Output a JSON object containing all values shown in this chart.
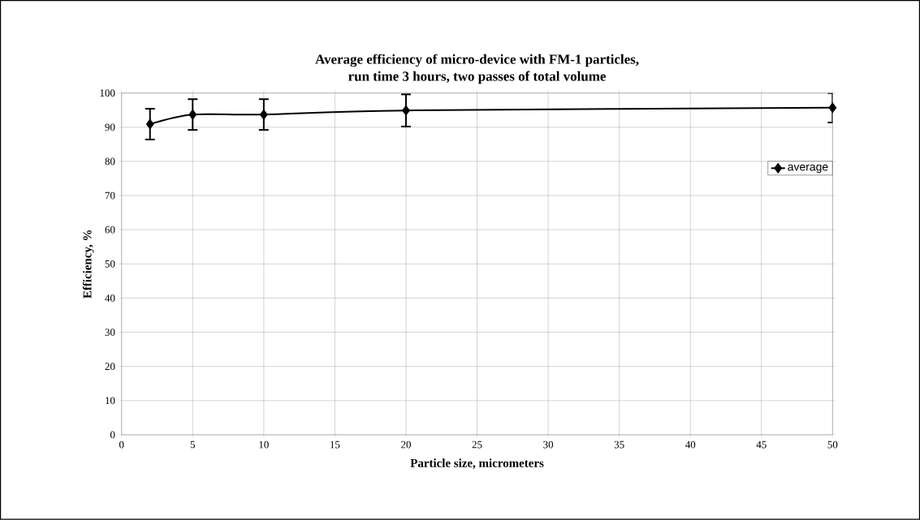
{
  "chart_data": {
    "type": "line",
    "title": "Average efficiency of micro-device with FM-1 particles,\nrun time 3 hours, two passes of total volume",
    "xlabel": "Particle size, micrometers",
    "ylabel": "Efficiency, %",
    "x": [
      2,
      5,
      10,
      20,
      50
    ],
    "series": [
      {
        "name": "average",
        "color": "#000000",
        "values": [
          90.9,
          93.7,
          93.7,
          94.9,
          95.7
        ],
        "errors": [
          4.5,
          4.5,
          4.5,
          4.7,
          4.3
        ]
      }
    ],
    "xlim": [
      0,
      50
    ],
    "xticks": [
      0,
      5,
      10,
      15,
      20,
      25,
      30,
      35,
      40,
      45,
      50
    ],
    "ylim": [
      0,
      100
    ],
    "yticks": [
      0,
      10,
      20,
      30,
      40,
      50,
      60,
      70,
      80,
      90,
      100
    ],
    "grid": true,
    "legend": "right",
    "marker": "diamond",
    "line_style": "solid"
  }
}
